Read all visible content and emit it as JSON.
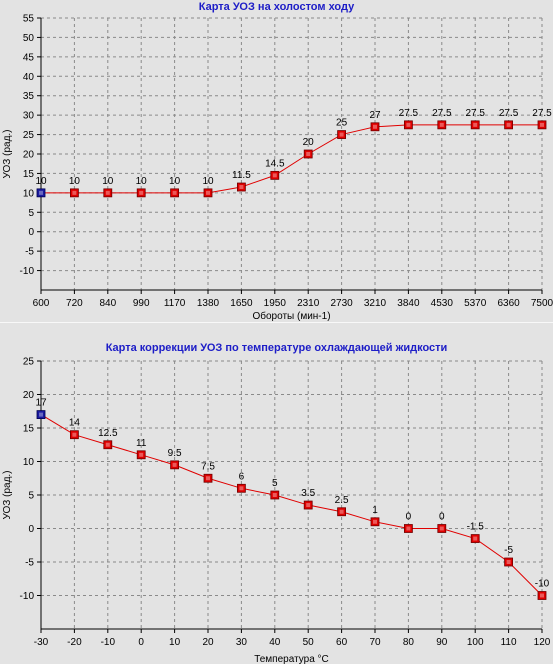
{
  "chart_data": [
    {
      "type": "line",
      "title": "Карта УОЗ на холостом ходу",
      "xlabel": "Обороты (мин-1)",
      "ylabel": "УОЗ (рад.)",
      "categories": [
        "600",
        "720",
        "840",
        "990",
        "1170",
        "1380",
        "1650",
        "1950",
        "2310",
        "2730",
        "3210",
        "3840",
        "4530",
        "5370",
        "6360",
        "7500"
      ],
      "values": [
        10,
        10,
        10,
        10,
        10,
        10,
        11.5,
        14.5,
        20,
        25,
        27,
        27.5,
        27.5,
        27.5,
        27.5,
        27.5
      ],
      "value_labels": [
        "10",
        "10",
        "10",
        "10",
        "10",
        "10",
        "11.5",
        "14.5",
        "20",
        "25",
        "27",
        "27.5",
        "27.5",
        "27.5",
        "27.5",
        "27.5"
      ],
      "y_ticks": [
        "55",
        "50",
        "45",
        "40",
        "35",
        "30",
        "25",
        "20",
        "15",
        "10",
        "5",
        "0",
        "-5",
        "-10"
      ],
      "ylim": [
        -15,
        55
      ],
      "grid": true,
      "line_color": "#e00000",
      "marker_color": "#e00000",
      "selected_marker_color": "#1a1aa0",
      "selected_index": 0
    },
    {
      "type": "line",
      "title": "Карта коррекции УОЗ по температуре охлаждающей жидкости",
      "xlabel": "Температура °С",
      "ylabel": "УОЗ (рад.)",
      "categories": [
        "-30",
        "-20",
        "-10",
        "0",
        "10",
        "20",
        "30",
        "40",
        "50",
        "60",
        "70",
        "80",
        "90",
        "100",
        "110",
        "120"
      ],
      "values": [
        17,
        14,
        12.5,
        11,
        9.5,
        7.5,
        6,
        5,
        3.5,
        2.5,
        1,
        0,
        0,
        -1.5,
        -5,
        -10
      ],
      "value_labels": [
        "17",
        "14",
        "12.5",
        "11",
        "9.5",
        "7.5",
        "6",
        "5",
        "3.5",
        "2.5",
        "1",
        "0",
        "0",
        "-1.5",
        "-5",
        "-10"
      ],
      "y_ticks": [
        "25",
        "20",
        "15",
        "10",
        "5",
        "0",
        "-5",
        "-10"
      ],
      "ylim": [
        -15,
        25
      ],
      "grid": true,
      "line_color": "#e00000",
      "marker_color": "#e00000",
      "selected_marker_color": "#1a1aa0",
      "selected_index": 0
    }
  ]
}
